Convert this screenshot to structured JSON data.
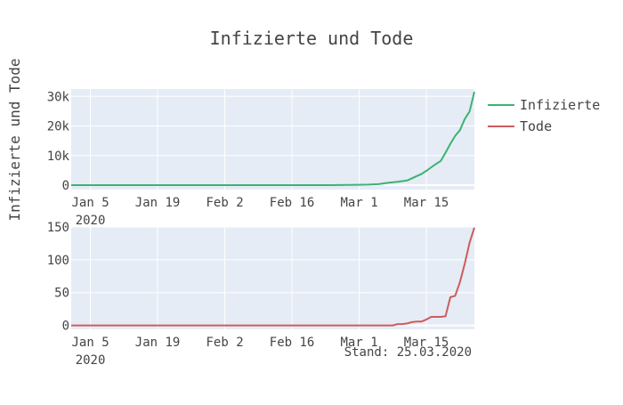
{
  "chart_data": {
    "type": "line",
    "title": "Infizierte und Tode",
    "ylabel": "Infizierte und Tode",
    "note": "Stand: 25.03.2020",
    "x_tick_labels": [
      "Jan 5",
      "Jan 19",
      "Feb 2",
      "Feb 16",
      "Mar 1",
      "Mar 15"
    ],
    "x_tick_year": "2020",
    "x_ticks": [
      "2020-01-05",
      "2020-01-19",
      "2020-02-02",
      "2020-02-16",
      "2020-03-01",
      "2020-03-15"
    ],
    "xlim": [
      "2020-01-01",
      "2020-03-25"
    ],
    "grid": true,
    "legend_position": "right",
    "panels": [
      {
        "ylim": [
          -1500,
          32500
        ],
        "y_ticks": [
          0,
          10000,
          20000,
          30000
        ],
        "y_tick_labels": [
          "0",
          "10k",
          "20k",
          "30k"
        ],
        "series": [
          {
            "name": "Infizierte",
            "color": "#3cb371",
            "x": [
              "2020-01-01",
              "2020-01-27",
              "2020-02-01",
              "2020-02-15",
              "2020-02-24",
              "2020-02-26",
              "2020-02-28",
              "2020-03-01",
              "2020-03-03",
              "2020-03-05",
              "2020-03-07",
              "2020-03-09",
              "2020-03-11",
              "2020-03-13",
              "2020-03-14",
              "2020-03-15",
              "2020-03-16",
              "2020-03-17",
              "2020-03-18",
              "2020-03-19",
              "2020-03-20",
              "2020-03-21",
              "2020-03-22",
              "2020-03-23",
              "2020-03-24",
              "2020-03-25"
            ],
            "y": [
              0,
              1,
              10,
              16,
              16,
              27,
              53,
              130,
              196,
              349,
              800,
              1112,
              1567,
              3062,
              3795,
              4838,
              6012,
              7156,
              8198,
              10999,
              13957,
              16662,
              18610,
              22364,
              24873,
              31554
            ]
          }
        ]
      },
      {
        "ylim": [
          -6,
          150
        ],
        "y_ticks": [
          0,
          50,
          100,
          150
        ],
        "y_tick_labels": [
          "0",
          "50",
          "100",
          "150"
        ],
        "series": [
          {
            "name": "Tode",
            "color": "#cd5c5c",
            "x": [
              "2020-01-01",
              "2020-03-08",
              "2020-03-09",
              "2020-03-10",
              "2020-03-11",
              "2020-03-12",
              "2020-03-13",
              "2020-03-14",
              "2020-03-15",
              "2020-03-16",
              "2020-03-17",
              "2020-03-18",
              "2020-03-19",
              "2020-03-20",
              "2020-03-21",
              "2020-03-22",
              "2020-03-23",
              "2020-03-24",
              "2020-03-25"
            ],
            "y": [
              0,
              0,
              2,
              2,
              3,
              5,
              6,
              6,
              9,
              13,
              13,
              13,
              14,
              43,
              45,
              66,
              94,
              126,
              149
            ]
          }
        ]
      }
    ]
  }
}
